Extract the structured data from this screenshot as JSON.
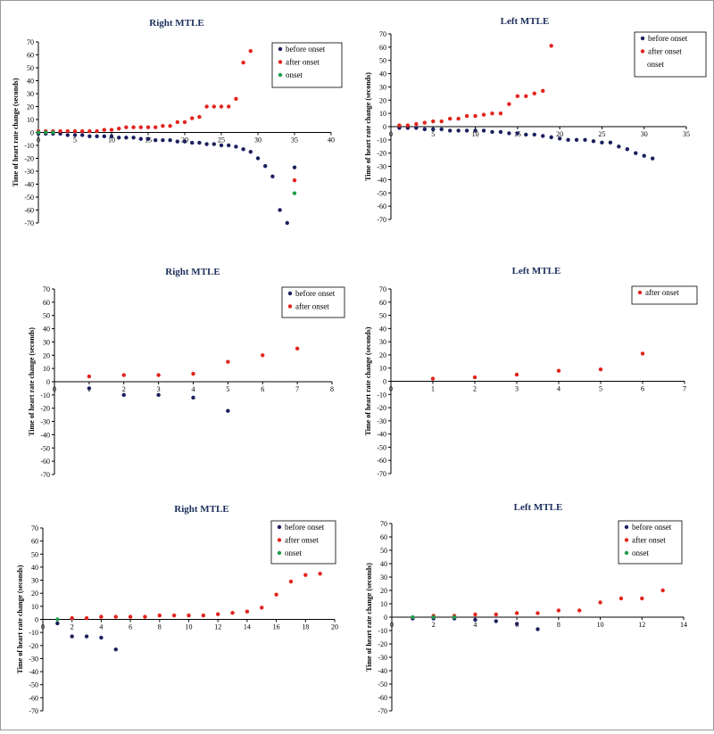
{
  "y_axis_label": "Time of heart rate change (seconds)",
  "colors": {
    "before": "#1b1f5e",
    "after": "#e3231c",
    "onset": "#1f9e4a",
    "title": "#1c2f5b"
  },
  "chart_data": [
    {
      "type": "scatter",
      "title": "Right MTLE",
      "ylabel": "Time of heart rate change (seconds)",
      "xlim": [
        0,
        40
      ],
      "ylim": [
        -70,
        70
      ],
      "xticks": [
        0,
        5,
        10,
        15,
        20,
        25,
        30,
        35,
        40
      ],
      "yticks": [
        -70,
        -60,
        -50,
        -40,
        -30,
        -20,
        -10,
        0,
        10,
        20,
        30,
        40,
        50,
        60,
        70
      ],
      "grid": false,
      "legend": "top-right",
      "legend_entries": [
        "before onset",
        "after onset",
        "onset"
      ],
      "series": [
        {
          "name": "before onset",
          "kind": "before",
          "points": [
            [
              0,
              -1
            ],
            [
              1,
              -1
            ],
            [
              2,
              -1
            ],
            [
              3,
              -1
            ],
            [
              4,
              -2
            ],
            [
              5,
              -2
            ],
            [
              6,
              -2
            ],
            [
              7,
              -3
            ],
            [
              8,
              -3
            ],
            [
              9,
              -3
            ],
            [
              10,
              -3
            ],
            [
              11,
              -4
            ],
            [
              12,
              -4
            ],
            [
              13,
              -4
            ],
            [
              14,
              -5
            ],
            [
              15,
              -5
            ],
            [
              16,
              -6
            ],
            [
              17,
              -6
            ],
            [
              18,
              -6
            ],
            [
              19,
              -7
            ],
            [
              20,
              -7
            ],
            [
              21,
              -8
            ],
            [
              22,
              -8
            ],
            [
              23,
              -9
            ],
            [
              24,
              -9
            ],
            [
              25,
              -10
            ],
            [
              26,
              -10
            ],
            [
              27,
              -11
            ],
            [
              28,
              -13
            ],
            [
              29,
              -15
            ],
            [
              30,
              -20
            ],
            [
              31,
              -26
            ],
            [
              32,
              -34
            ],
            [
              33,
              -60
            ],
            [
              34,
              -70
            ],
            [
              35,
              -27
            ]
          ]
        },
        {
          "name": "after onset",
          "kind": "after",
          "points": [
            [
              0,
              1
            ],
            [
              1,
              1
            ],
            [
              2,
              1
            ],
            [
              3,
              1
            ],
            [
              4,
              1
            ],
            [
              5,
              1
            ],
            [
              6,
              1
            ],
            [
              7,
              1
            ],
            [
              8,
              1
            ],
            [
              9,
              2
            ],
            [
              10,
              2
            ],
            [
              11,
              3
            ],
            [
              12,
              4
            ],
            [
              13,
              4
            ],
            [
              14,
              4
            ],
            [
              15,
              4
            ],
            [
              16,
              4
            ],
            [
              17,
              5
            ],
            [
              18,
              5
            ],
            [
              19,
              8
            ],
            [
              20,
              8
            ],
            [
              21,
              11
            ],
            [
              22,
              12
            ],
            [
              23,
              20
            ],
            [
              24,
              20
            ],
            [
              25,
              20
            ],
            [
              26,
              20
            ],
            [
              27,
              26
            ],
            [
              28,
              54
            ],
            [
              29,
              63
            ],
            [
              35,
              -37
            ]
          ]
        },
        {
          "name": "onset",
          "kind": "onset",
          "points": [
            [
              0,
              0
            ],
            [
              1,
              0
            ],
            [
              2,
              0
            ],
            [
              35,
              -47
            ]
          ]
        }
      ]
    },
    {
      "type": "scatter",
      "title": "Left MTLE",
      "ylabel": "Time of heart rate change (seconds)",
      "xlim": [
        0,
        35
      ],
      "ylim": [
        -70,
        70
      ],
      "xticks": [
        0,
        5,
        10,
        15,
        20,
        25,
        30,
        35
      ],
      "yticks": [
        -70,
        -60,
        -50,
        -40,
        -30,
        -20,
        -10,
        0,
        10,
        20,
        30,
        40,
        50,
        60,
        70
      ],
      "grid": false,
      "legend": "top-right",
      "legend_entries": [
        "before onset",
        "after onset",
        "onset"
      ],
      "series": [
        {
          "name": "before onset",
          "kind": "before",
          "points": [
            [
              1,
              -1
            ],
            [
              2,
              -1
            ],
            [
              3,
              -1
            ],
            [
              4,
              -2
            ],
            [
              5,
              -2
            ],
            [
              6,
              -2
            ],
            [
              7,
              -3
            ],
            [
              8,
              -3
            ],
            [
              9,
              -3
            ],
            [
              10,
              -3
            ],
            [
              11,
              -3
            ],
            [
              12,
              -4
            ],
            [
              13,
              -4
            ],
            [
              14,
              -5
            ],
            [
              15,
              -5
            ],
            [
              16,
              -6
            ],
            [
              17,
              -6
            ],
            [
              18,
              -7
            ],
            [
              19,
              -8
            ],
            [
              20,
              -9
            ],
            [
              21,
              -10
            ],
            [
              22,
              -10
            ],
            [
              23,
              -10
            ],
            [
              24,
              -11
            ],
            [
              25,
              -12
            ],
            [
              26,
              -12
            ],
            [
              27,
              -15
            ],
            [
              28,
              -17
            ],
            [
              29,
              -20
            ],
            [
              30,
              -22
            ],
            [
              31,
              -24
            ]
          ]
        },
        {
          "name": "after onset",
          "kind": "after",
          "points": [
            [
              1,
              1
            ],
            [
              2,
              1
            ],
            [
              3,
              2
            ],
            [
              4,
              3
            ],
            [
              5,
              4
            ],
            [
              6,
              4
            ],
            [
              7,
              6
            ],
            [
              8,
              6
            ],
            [
              9,
              8
            ],
            [
              10,
              8
            ],
            [
              11,
              9
            ],
            [
              12,
              10
            ],
            [
              13,
              10
            ],
            [
              14,
              17
            ],
            [
              15,
              23
            ],
            [
              16,
              23
            ],
            [
              17,
              25
            ],
            [
              18,
              27
            ],
            [
              19,
              61
            ]
          ]
        }
      ]
    },
    {
      "type": "scatter",
      "title": "Right MTLE",
      "ylabel": "Time of heart rate change (seconds)",
      "xlim": [
        0,
        8
      ],
      "ylim": [
        -70,
        70
      ],
      "xticks": [
        0,
        1,
        2,
        3,
        4,
        5,
        6,
        7,
        8
      ],
      "yticks": [
        -70,
        -60,
        -50,
        -40,
        -30,
        -20,
        -10,
        0,
        10,
        20,
        30,
        40,
        50,
        60,
        70
      ],
      "grid": false,
      "legend": "top-right",
      "legend_entries": [
        "before onset",
        "after onset"
      ],
      "series": [
        {
          "name": "before onset",
          "kind": "before",
          "points": [
            [
              1,
              -5
            ],
            [
              2,
              -10
            ],
            [
              3,
              -10
            ],
            [
              4,
              -12
            ],
            [
              5,
              -22
            ]
          ]
        },
        {
          "name": "after onset",
          "kind": "after",
          "points": [
            [
              1,
              4
            ],
            [
              2,
              5
            ],
            [
              3,
              5
            ],
            [
              4,
              6
            ],
            [
              5,
              15
            ],
            [
              6,
              20
            ],
            [
              7,
              25
            ]
          ]
        }
      ]
    },
    {
      "type": "scatter",
      "title": "Left MTLE",
      "ylabel": "Time of heart rate change (seconds)",
      "xlim": [
        0,
        7
      ],
      "ylim": [
        -70,
        70
      ],
      "xticks": [
        0,
        1,
        2,
        3,
        4,
        5,
        6,
        7
      ],
      "yticks": [
        -70,
        -60,
        -50,
        -40,
        -30,
        -20,
        -10,
        0,
        10,
        20,
        30,
        40,
        50,
        60,
        70
      ],
      "grid": false,
      "legend": "top-right",
      "legend_entries": [
        "after onset"
      ],
      "series": [
        {
          "name": "after onset",
          "kind": "after",
          "points": [
            [
              1,
              2
            ],
            [
              2,
              3
            ],
            [
              3,
              5
            ],
            [
              4,
              8
            ],
            [
              5,
              9
            ],
            [
              6,
              21
            ]
          ]
        }
      ]
    },
    {
      "type": "scatter",
      "title": "Right MTLE",
      "ylabel": "Time of heart rate change (seconds)",
      "xlim": [
        0,
        20
      ],
      "ylim": [
        -70,
        70
      ],
      "xticks": [
        0,
        2,
        4,
        6,
        8,
        10,
        12,
        14,
        16,
        18,
        20
      ],
      "yticks": [
        -70,
        -60,
        -50,
        -40,
        -30,
        -20,
        -10,
        0,
        10,
        20,
        30,
        40,
        50,
        60,
        70
      ],
      "grid": false,
      "legend": "top-right",
      "legend_entries": [
        "before onset",
        "after onset",
        "onset"
      ],
      "series": [
        {
          "name": "before onset",
          "kind": "before",
          "points": [
            [
              1,
              -3
            ],
            [
              2,
              -13
            ],
            [
              3,
              -13
            ],
            [
              4,
              -14
            ],
            [
              5,
              -23
            ]
          ]
        },
        {
          "name": "after onset",
          "kind": "after",
          "points": [
            [
              2,
              1
            ],
            [
              3,
              1
            ],
            [
              4,
              2
            ],
            [
              5,
              2
            ],
            [
              6,
              2
            ],
            [
              7,
              2
            ],
            [
              8,
              3
            ],
            [
              9,
              3
            ],
            [
              10,
              3
            ],
            [
              11,
              3
            ],
            [
              12,
              4
            ],
            [
              13,
              5
            ],
            [
              14,
              6
            ],
            [
              15,
              9
            ],
            [
              16,
              19
            ],
            [
              17,
              29
            ],
            [
              18,
              34
            ],
            [
              19,
              35
            ]
          ]
        },
        {
          "name": "onset",
          "kind": "onset",
          "points": [
            [
              1,
              0
            ]
          ]
        }
      ]
    },
    {
      "type": "scatter",
      "title": "Left MTLE",
      "ylabel": "Time of heart rate change (seconds)",
      "xlim": [
        0,
        14
      ],
      "ylim": [
        -70,
        70
      ],
      "xticks": [
        0,
        2,
        4,
        6,
        8,
        10,
        12,
        14
      ],
      "yticks": [
        -70,
        -60,
        -50,
        -40,
        -30,
        -20,
        -10,
        0,
        10,
        20,
        30,
        40,
        50,
        60,
        70
      ],
      "grid": false,
      "legend": "top-right",
      "legend_entries": [
        "before onset",
        "after onset",
        "onset"
      ],
      "series": [
        {
          "name": "before onset",
          "kind": "before",
          "points": [
            [
              1,
              -1
            ],
            [
              2,
              -1
            ],
            [
              3,
              -1
            ],
            [
              4,
              -2
            ],
            [
              5,
              -3
            ],
            [
              6,
              -5
            ],
            [
              7,
              -9
            ]
          ]
        },
        {
          "name": "after onset",
          "kind": "after",
          "points": [
            [
              2,
              1
            ],
            [
              3,
              1
            ],
            [
              4,
              2
            ],
            [
              5,
              2
            ],
            [
              6,
              3
            ],
            [
              7,
              3
            ],
            [
              8,
              5
            ],
            [
              9,
              5
            ],
            [
              10,
              11
            ],
            [
              11,
              14
            ],
            [
              12,
              14
            ],
            [
              13,
              20
            ]
          ]
        },
        {
          "name": "onset",
          "kind": "onset",
          "points": [
            [
              1,
              0
            ],
            [
              2,
              0
            ],
            [
              3,
              0
            ]
          ]
        }
      ]
    }
  ]
}
